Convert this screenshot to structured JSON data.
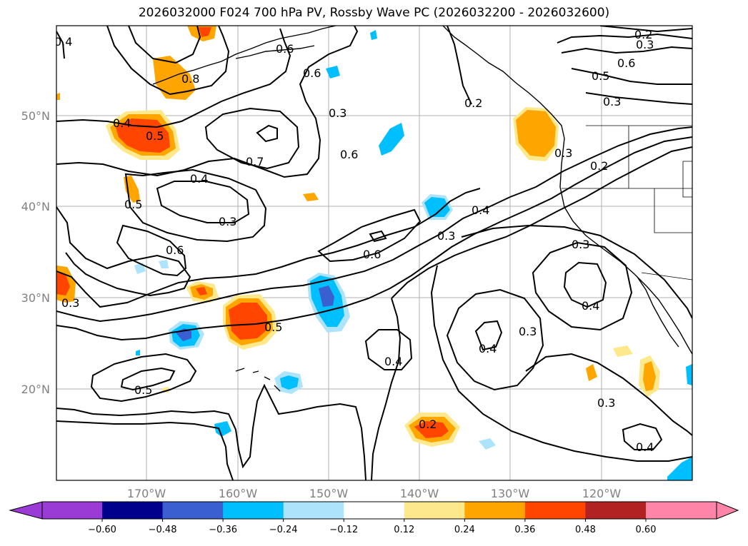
{
  "title": "2026032000 F024 700 hPa PV, Rossby Wave PC (2026032200 - 2026032600)",
  "lat_labels": [
    "50°N",
    "40°N",
    "30°N",
    "20°N"
  ],
  "lon_labels": [
    "170°W",
    "160°W",
    "150°W",
    "140°W",
    "130°W",
    "120°W"
  ],
  "colorbar": {
    "colors": [
      "#9a3bd6",
      "#00008c",
      "#3a5fd0",
      "#00bfff",
      "#ade3fb",
      "#ffffff",
      "#fde98c",
      "#ffa500",
      "#ff4500",
      "#b22222",
      "#ff85a8"
    ],
    "tick_labels": [
      "−0.60",
      "−0.48",
      "−0.36",
      "−0.24",
      "−0.12",
      "0.12",
      "0.24",
      "0.36",
      "0.48",
      "0.60"
    ]
  },
  "contour_labels": [
    "0.4",
    "0.2",
    "0.3",
    "0.6",
    "0.8",
    "0.6",
    "0.3",
    "0.2",
    "0.5",
    "0.6",
    "0.3",
    "0.4",
    "0.5",
    "0.7",
    "0.2",
    "0.4",
    "0.5",
    "0.3",
    "0.3",
    "0.6",
    "0.4",
    "0.3",
    "0.6",
    "0.3",
    "0.4",
    "0.5",
    "0.3",
    "0.4",
    "0.3",
    "0.4",
    "0.5",
    "0.2",
    "0.3",
    "0.4",
    "0.6"
  ]
}
